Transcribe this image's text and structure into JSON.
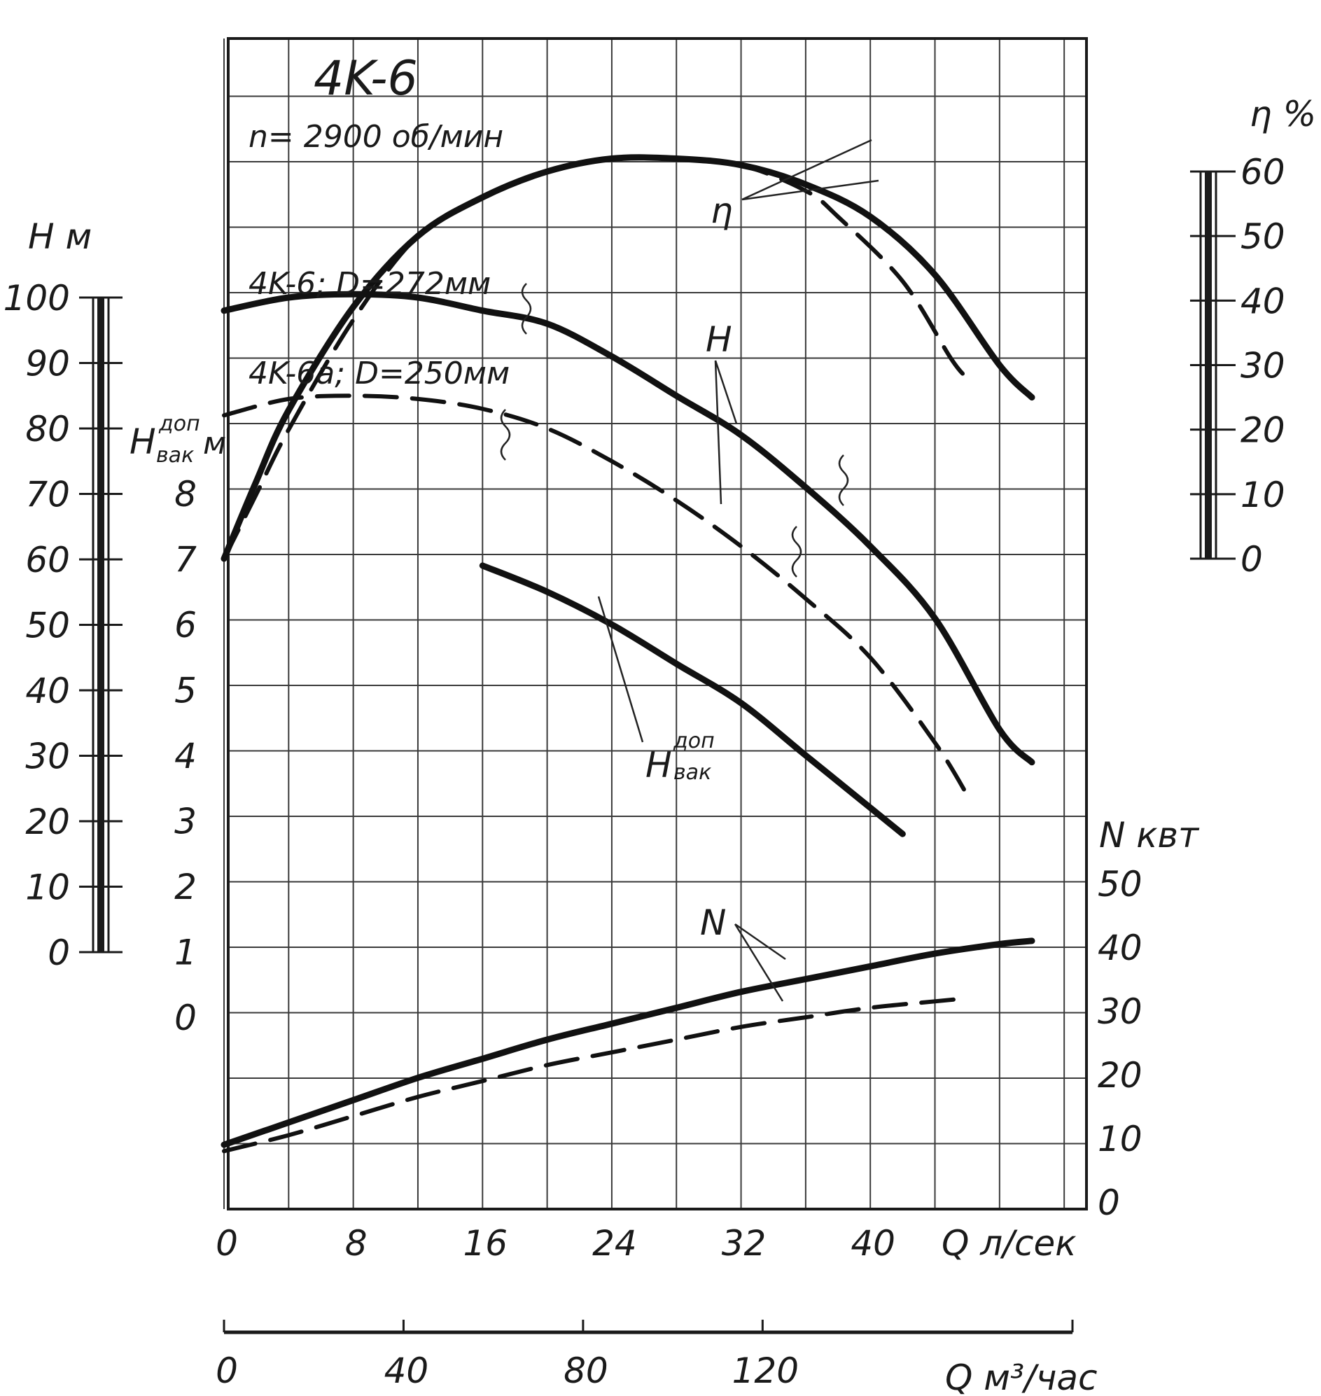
{
  "chart_data": {
    "type": "line",
    "title": "4K-6",
    "subtitle": "n= 2900 об/мин",
    "x_axis": {
      "label_primary": "Q л/сек",
      "ticks_primary": [
        "0",
        "8",
        "16",
        "24",
        "32",
        "40"
      ],
      "range_primary": [
        0,
        52
      ],
      "label_secondary": "Q м³/час",
      "ticks_secondary": [
        "0",
        "40",
        "80",
        "120"
      ]
    },
    "y_axes": {
      "head": {
        "label": "H м",
        "ticks": [
          "0",
          "10",
          "20",
          "30",
          "40",
          "50",
          "60",
          "70",
          "80",
          "90",
          "100"
        ],
        "range": [
          0,
          100
        ]
      },
      "vacuum": {
        "label_main": "H",
        "label_sup": "доп",
        "label_sub": "вак",
        "label_unit": "м",
        "ticks": [
          "0",
          "1",
          "2",
          "3",
          "4",
          "5",
          "6",
          "7",
          "8"
        ],
        "range": [
          0,
          8
        ]
      },
      "efficiency": {
        "label": "η %",
        "ticks": [
          "0",
          "10",
          "20",
          "30",
          "40",
          "50",
          "60"
        ],
        "range": [
          0,
          60
        ]
      },
      "power": {
        "label": "N квт",
        "ticks": [
          "0",
          "10",
          "20",
          "30",
          "40",
          "50"
        ],
        "range": [
          0,
          50
        ]
      }
    },
    "series": [
      {
        "name": "η",
        "axis": "efficiency",
        "impeller": "4K-6; D=272мм",
        "style": "solid",
        "x": [
          0,
          2,
          4,
          8,
          12,
          16,
          20,
          24,
          28,
          32,
          36,
          40,
          44,
          48,
          50
        ],
        "y": [
          0,
          12,
          23,
          39,
          50,
          56,
          60,
          62,
          62,
          61,
          58,
          53,
          44,
          30,
          25
        ]
      },
      {
        "name": "η",
        "axis": "efficiency",
        "impeller": "4K-6a; D=250мм",
        "style": "dashed",
        "x": [
          0,
          2,
          4,
          8,
          12,
          16,
          20,
          24,
          28,
          32,
          36,
          38,
          42,
          45,
          46
        ],
        "y": [
          0,
          10,
          20,
          37,
          50,
          56,
          60,
          62,
          62,
          61,
          57,
          53,
          43,
          31,
          28
        ]
      },
      {
        "name": "H",
        "axis": "head",
        "impeller": "4K-6; D=272мм",
        "style": "solid",
        "x": [
          0,
          4,
          8,
          12,
          16,
          20,
          24,
          28,
          32,
          36,
          40,
          44,
          48,
          50
        ],
        "y": [
          98,
          100,
          100.5,
          100,
          98,
          96,
          91,
          85,
          79,
          71,
          62,
          51,
          34,
          29
        ]
      },
      {
        "name": "H",
        "axis": "head",
        "impeller": "4K-6a; D=250мм",
        "style": "dashed",
        "x": [
          0,
          4,
          8,
          12,
          16,
          20,
          24,
          28,
          32,
          36,
          40,
          44,
          46
        ],
        "y": [
          82,
          84.5,
          85,
          84.5,
          83,
          80,
          75,
          69,
          62,
          54,
          45,
          32,
          24
        ]
      },
      {
        "name": "H доп вак",
        "axis": "vacuum",
        "impeller": "4K-6",
        "style": "solid",
        "x": [
          16,
          20,
          24,
          28,
          32,
          36,
          40,
          42
        ],
        "y": [
          6.9,
          6.5,
          6.0,
          5.4,
          4.8,
          4.0,
          3.2,
          2.8
        ]
      },
      {
        "name": "N",
        "axis": "power",
        "impeller": "4K-6; D=272мм",
        "style": "solid",
        "x": [
          0,
          4,
          8,
          12,
          16,
          20,
          24,
          28,
          32,
          36,
          40,
          44,
          48,
          50
        ],
        "y": [
          9,
          12.5,
          16,
          19.5,
          22.5,
          25.5,
          28,
          30.5,
          33,
          35,
          37,
          39,
          40.5,
          41
        ]
      },
      {
        "name": "N",
        "axis": "power",
        "impeller": "4K-6a; D=250мм",
        "style": "dashed",
        "x": [
          0,
          4,
          8,
          12,
          16,
          20,
          24,
          28,
          32,
          36,
          40,
          44,
          46
        ],
        "y": [
          8,
          10.5,
          13.5,
          16.5,
          19,
          21.5,
          23.5,
          25.5,
          27.5,
          29,
          30.5,
          31.5,
          32
        ]
      }
    ],
    "annotations": {
      "curve_label_eta": "η",
      "curve_label_h": "H",
      "curve_label_vac_main": "H",
      "curve_label_vac_sup": "доп",
      "curve_label_vac_sub": "вак",
      "curve_label_n": "N",
      "impeller_1": "4K-6; D=272мм",
      "impeller_2": "4K-6a; D=250мм"
    },
    "grid": true
  }
}
